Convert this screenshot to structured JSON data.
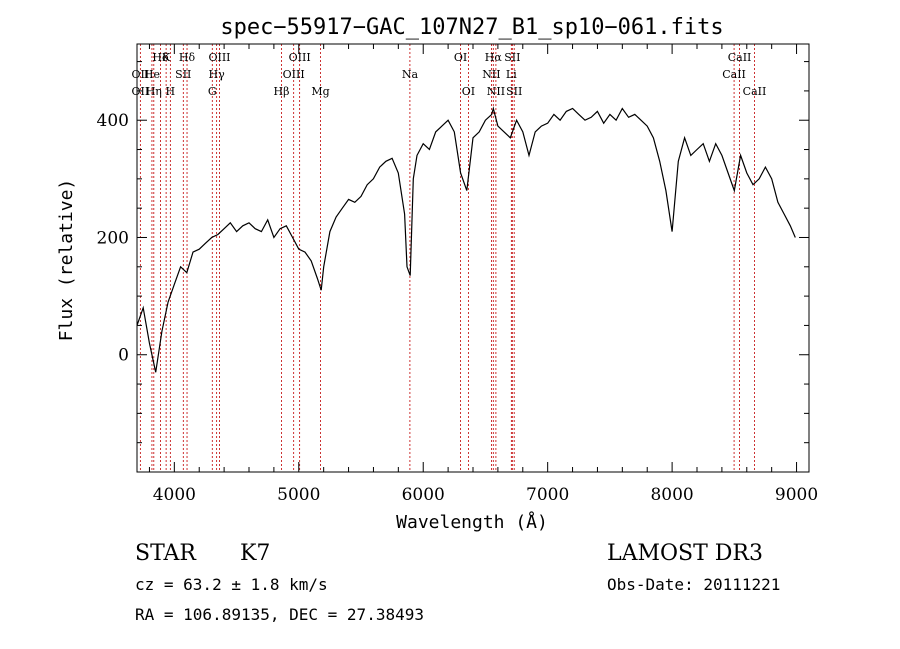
{
  "chart_data": {
    "type": "line",
    "title": "spec−55917−GAC_107N27_B1_sp10−061.fits",
    "xlabel": "Wavelength (Å)",
    "ylabel": "Flux (relative)",
    "xlim": [
      3700,
      9100
    ],
    "ylim": [
      -200,
      530
    ],
    "xticks": [
      4000,
      5000,
      6000,
      7000,
      8000,
      9000
    ],
    "yticks": [
      0,
      200,
      400
    ],
    "series": [
      {
        "name": "flux",
        "x": [
          3700,
          3750,
          3800,
          3850,
          3900,
          3950,
          4000,
          4050,
          4100,
          4150,
          4200,
          4250,
          4300,
          4350,
          4400,
          4450,
          4500,
          4550,
          4600,
          4650,
          4700,
          4750,
          4800,
          4850,
          4900,
          4950,
          5000,
          5050,
          5100,
          5150,
          5180,
          5200,
          5250,
          5300,
          5350,
          5400,
          5450,
          5500,
          5550,
          5600,
          5650,
          5700,
          5750,
          5800,
          5850,
          5870,
          5895,
          5920,
          5950,
          6000,
          6050,
          6100,
          6150,
          6200,
          6250,
          6300,
          6350,
          6400,
          6450,
          6500,
          6550,
          6563,
          6600,
          6650,
          6700,
          6750,
          6800,
          6850,
          6900,
          6950,
          7000,
          7050,
          7100,
          7150,
          7200,
          7250,
          7300,
          7350,
          7400,
          7450,
          7500,
          7550,
          7600,
          7650,
          7700,
          7750,
          7800,
          7850,
          7900,
          7950,
          8000,
          8050,
          8100,
          8150,
          8200,
          8250,
          8300,
          8350,
          8400,
          8450,
          8500,
          8550,
          8600,
          8650,
          8700,
          8750,
          8800,
          8850,
          8900,
          8950,
          8990
        ],
        "values": [
          50,
          80,
          20,
          -30,
          40,
          90,
          120,
          150,
          140,
          175,
          180,
          190,
          200,
          205,
          215,
          225,
          210,
          220,
          225,
          215,
          210,
          230,
          200,
          215,
          220,
          200,
          180,
          175,
          160,
          130,
          110,
          150,
          210,
          235,
          250,
          265,
          260,
          270,
          290,
          300,
          320,
          330,
          335,
          310,
          240,
          150,
          135,
          300,
          340,
          360,
          350,
          380,
          390,
          400,
          380,
          310,
          280,
          370,
          380,
          400,
          410,
          420,
          390,
          380,
          370,
          400,
          380,
          340,
          380,
          390,
          395,
          410,
          400,
          415,
          420,
          410,
          400,
          405,
          415,
          395,
          410,
          400,
          420,
          405,
          410,
          400,
          390,
          370,
          330,
          280,
          210,
          330,
          370,
          340,
          350,
          360,
          330,
          360,
          340,
          310,
          280,
          340,
          310,
          290,
          300,
          320,
          300,
          260,
          240,
          220,
          200
        ]
      }
    ],
    "spectral_lines": [
      {
        "label": "Hδ",
        "x": 3889,
        "row": 1
      },
      {
        "label": "K",
        "x": 3934,
        "row": 1
      },
      {
        "label": "Hδ",
        "x": 4102,
        "row": 1
      },
      {
        "label": "OIII",
        "x": 4363,
        "row": 1
      },
      {
        "label": "OIII",
        "x": 5007,
        "row": 1
      },
      {
        "label": "OI",
        "x": 6300,
        "row": 1
      },
      {
        "label": "Hα",
        "x": 6563,
        "row": 1
      },
      {
        "label": "SII",
        "x": 6716,
        "row": 1
      },
      {
        "label": "CaII",
        "x": 8542,
        "row": 1
      },
      {
        "label": "OII",
        "x": 3727,
        "row": 2
      },
      {
        "label": "He",
        "x": 3820,
        "row": 2
      },
      {
        "label": "SII",
        "x": 4072,
        "row": 2
      },
      {
        "label": "Hγ",
        "x": 4340,
        "row": 2
      },
      {
        "label": "OIII",
        "x": 4959,
        "row": 2
      },
      {
        "label": "Na",
        "x": 5893,
        "row": 2
      },
      {
        "label": "NII",
        "x": 6548,
        "row": 2
      },
      {
        "label": "Li",
        "x": 6708,
        "row": 2
      },
      {
        "label": "CaII",
        "x": 8498,
        "row": 2
      },
      {
        "label": "OII",
        "x": 3727,
        "row": 3
      },
      {
        "label": "Hη",
        "x": 3835,
        "row": 3
      },
      {
        "label": "H",
        "x": 3968,
        "row": 3
      },
      {
        "label": "G",
        "x": 4305,
        "row": 3
      },
      {
        "label": "Hβ",
        "x": 4861,
        "row": 3
      },
      {
        "label": "Mg",
        "x": 5175,
        "row": 3
      },
      {
        "label": "OI",
        "x": 6363,
        "row": 3
      },
      {
        "label": "NII",
        "x": 6584,
        "row": 3
      },
      {
        "label": "SII",
        "x": 6731,
        "row": 3
      },
      {
        "label": "CaII",
        "x": 8662,
        "row": 3
      }
    ]
  },
  "info": {
    "object_class": "STAR",
    "subclass": "K7",
    "survey": "LAMOST DR3",
    "redshift": "cz = 63.2 ± 1.8 km/s",
    "obs_date": "Obs-Date: 20111221",
    "coords": "RA = 106.89135, DEC =  27.38493"
  }
}
